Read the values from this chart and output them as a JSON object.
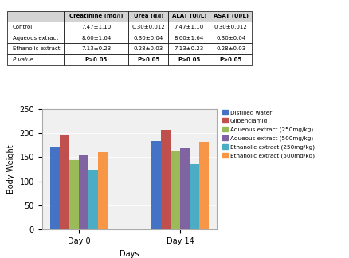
{
  "table": {
    "headers": [
      "",
      "Creatinine (mg/l)",
      "Urea (g/l)",
      "ALAT (UI/L)",
      "ASAT (UI/L)"
    ],
    "rows": [
      [
        "Control",
        "7.47±1.10",
        "0.30±0.012",
        "7.47±1.10",
        "0.30±0.012"
      ],
      [
        "Aqueous extract",
        "8.60±1.64",
        "0.30±0.04",
        "8.60±1.64",
        "0.30±0.04"
      ],
      [
        "Ethanolic extract",
        "7.13±0.23",
        "0.28±0.03",
        "7.13±0.23",
        "0.28±0.03"
      ],
      [
        "P value",
        "P>0.05",
        "P>0.05",
        "P>0.05",
        "P>0.05"
      ]
    ]
  },
  "chart": {
    "categories": [
      "Day 0",
      "Day 14"
    ],
    "series": [
      {
        "label": "Distilled water",
        "color": "#4472C4",
        "values": [
          170,
          184
        ]
      },
      {
        "label": "Glibenclamid",
        "color": "#C0504D",
        "values": [
          197,
          206
        ]
      },
      {
        "label": "Aqueous extract (250mg/kg)",
        "color": "#9BBB59",
        "values": [
          144,
          163
        ]
      },
      {
        "label": "Aqueous extract (500mg/kg)",
        "color": "#8064A2",
        "values": [
          154,
          168
        ]
      },
      {
        "label": "Ethanolic extract (250mg/kg)",
        "color": "#4BACC6",
        "values": [
          125,
          135
        ]
      },
      {
        "label": "Ethanolic extract (500mg/kg)",
        "color": "#F79646",
        "values": [
          161,
          182
        ]
      }
    ],
    "ylabel": "Body Weight",
    "xlabel": "Days",
    "ylim": [
      0,
      250
    ],
    "yticks": [
      0,
      50,
      100,
      150,
      200,
      250
    ]
  },
  "fig_bg": "#ffffff",
  "chart_bg": "#f0f0f0"
}
